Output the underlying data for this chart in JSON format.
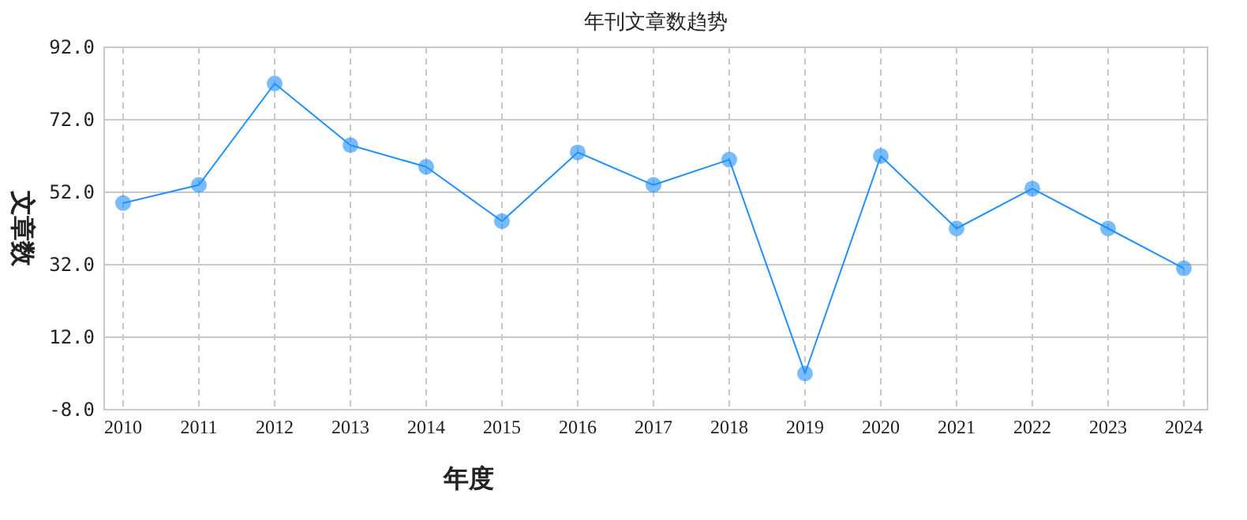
{
  "chart_data": {
    "type": "line",
    "title": "年刊文章数趋势",
    "xlabel": "年度",
    "ylabel": "文章数",
    "categories": [
      "2010",
      "2011",
      "2012",
      "2013",
      "2014",
      "2015",
      "2016",
      "2017",
      "2018",
      "2019",
      "2020",
      "2021",
      "2022",
      "2023",
      "2024"
    ],
    "series": [
      {
        "color": "#1e90ff",
        "values": [
          49,
          54,
          82,
          65,
          59,
          44,
          63,
          54,
          61,
          2,
          62,
          42,
          53,
          42,
          31
        ]
      }
    ],
    "ylim": [
      -8,
      92
    ],
    "yticks": [
      {
        "value": -8,
        "label": "-8.0"
      },
      {
        "value": 12,
        "label": "12.0"
      },
      {
        "value": 32,
        "label": "32.0"
      },
      {
        "value": 52,
        "label": "52.0"
      },
      {
        "value": 72,
        "label": "72.0"
      },
      {
        "value": 92,
        "label": "92.0"
      }
    ],
    "grid": true,
    "marker": "circle",
    "line_style": "solid"
  }
}
